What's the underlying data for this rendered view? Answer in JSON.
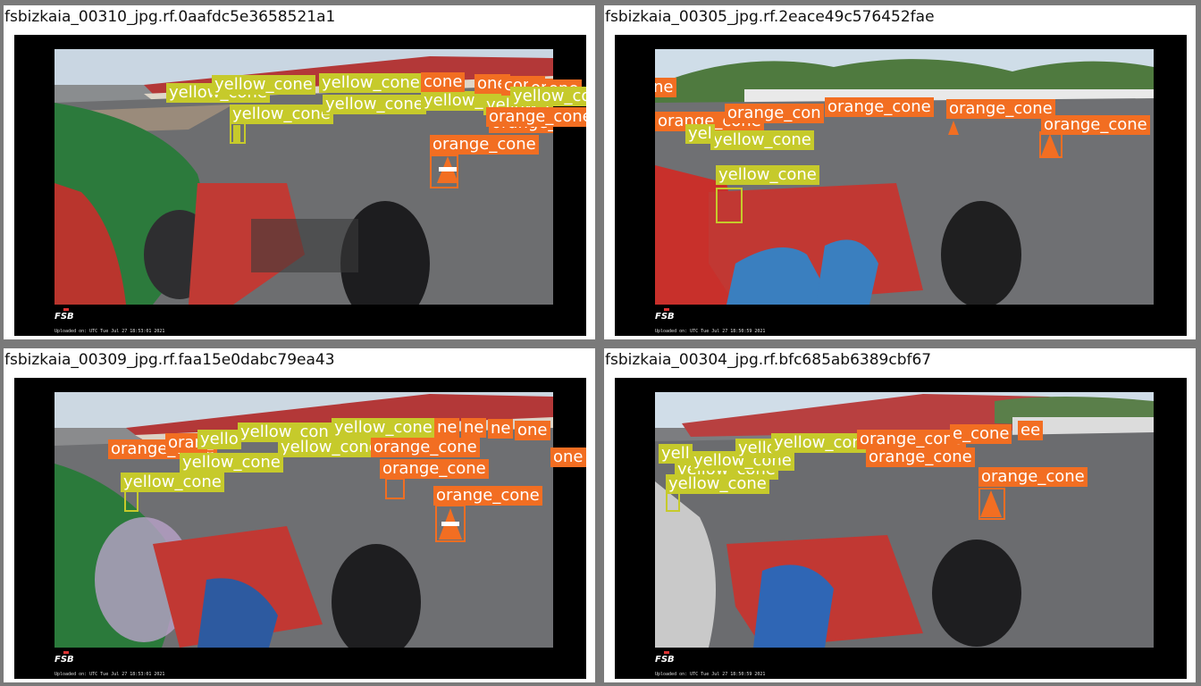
{
  "colors": {
    "yellow": "#c6ca2b",
    "orange": "#f26e22",
    "frame": "#000000",
    "border": "#7a7a7a"
  },
  "panels": [
    {
      "title": "fsbizkaia_00310_jpg.rf.0aafdc5e3658521a1",
      "upload": "Uploaded on:  UTC   Tue Jul 27 18:53:01 2021"
    },
    {
      "title": "fsbizkaia_00305_jpg.rf.2eace49c576452fae",
      "upload": "Uploaded on:  UTC   Tue Jul 27 18:50:59 2021"
    },
    {
      "title": "fsbizkaia_00309_jpg.rf.faa15e0dabc79ea43",
      "upload": "Uploaded on:  UTC   Tue Jul 27 18:53:01 2021"
    },
    {
      "title": "fsbizkaia_00304_jpg.rf.bfc685ab6389cbf67",
      "upload": "Uploaded on:  UTC   Tue Jul 27 18:50:59 2021"
    }
  ],
  "labels": {
    "yellow": "yellow_cone",
    "orange": "orange_cone"
  },
  "fragments": {
    "p0": [
      "yellow_cone",
      "yellow_cone",
      "yellow_cone",
      "yellow_cone",
      "yellow_cone",
      "yellow_cone",
      "yellow_cone",
      "yellow_cone",
      "orange_cone",
      "orange_cone",
      "orange_cone",
      "cone",
      "one",
      "cone",
      "one",
      "one",
      "e"
    ],
    "p1": [
      "orange_cone",
      "orange_con",
      "orange_cone",
      "orange_cone",
      "orange_cone",
      "yellow_cone",
      "yellow_cone",
      "yel",
      "one"
    ],
    "p2": [
      "orange_cone",
      "oran",
      "yello",
      "yellow_con",
      "yellow_cone",
      "yellow_cone",
      "yellow_cone",
      "yellow_cone",
      "orange_cone",
      "orange_cone",
      "orange_cone",
      "ne",
      "ne",
      "ne",
      "one",
      "cone",
      "one",
      "_cone",
      "yellow_cone",
      "orange_cone"
    ],
    "p3": [
      "yell",
      "yellow_cone",
      "yellow_cone",
      "yello",
      "yellow_cone",
      "yellow_cone",
      "orange_cone",
      "orange_cone",
      "orange_cone",
      "e_cone",
      "ee",
      "cone",
      "orange_cone",
      "yellow_cone"
    ]
  }
}
